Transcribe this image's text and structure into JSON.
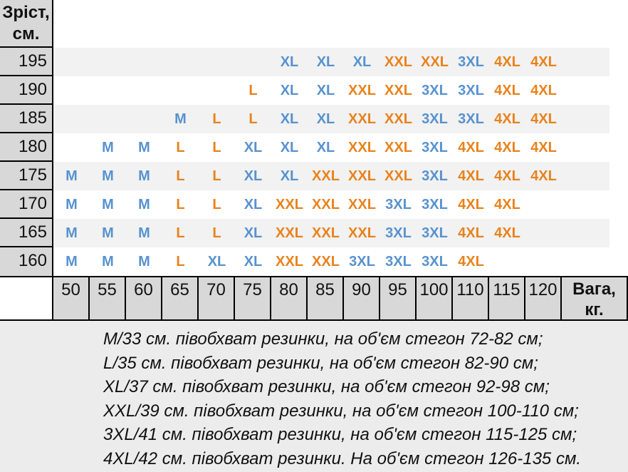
{
  "table": {
    "height_header": {
      "line1": "Зріст,",
      "line2": "см."
    },
    "weight_header": {
      "line1": "Вага,",
      "line2": "кг."
    },
    "weights": [
      "50",
      "55",
      "60",
      "65",
      "70",
      "75",
      "80",
      "85",
      "90",
      "95",
      "100",
      "110",
      "115",
      "120"
    ],
    "rows": [
      {
        "height": "195",
        "sizes": [
          "",
          "",
          "",
          "",
          "",
          "",
          "XL",
          "XL",
          "XL",
          "XXL",
          "XXL",
          "3XL",
          "4XL",
          "4XL"
        ]
      },
      {
        "height": "190",
        "sizes": [
          "",
          "",
          "",
          "",
          "",
          "L",
          "XL",
          "XL",
          "XXL",
          "XXL",
          "3XL",
          "3XL",
          "4XL",
          "4XL"
        ]
      },
      {
        "height": "185",
        "sizes": [
          "",
          "",
          "",
          "M",
          "L",
          "L",
          "XL",
          "XL",
          "XXL",
          "XXL",
          "3XL",
          "3XL",
          "4XL",
          "4XL"
        ]
      },
      {
        "height": "180",
        "sizes": [
          "",
          "M",
          "M",
          "L",
          "L",
          "XL",
          "XL",
          "XL",
          "XXL",
          "XXL",
          "3XL",
          "4XL",
          "4XL",
          "4XL"
        ]
      },
      {
        "height": "175",
        "sizes": [
          "M",
          "M",
          "M",
          "L",
          "L",
          "XL",
          "XL",
          "XXL",
          "XXL",
          "XXL",
          "3XL",
          "4XL",
          "4XL",
          "4XL"
        ]
      },
      {
        "height": "170",
        "sizes": [
          "M",
          "M",
          "M",
          "L",
          "L",
          "XL",
          "XXL",
          "XXL",
          "XXL",
          "3XL",
          "3XL",
          "4XL",
          "4XL",
          ""
        ]
      },
      {
        "height": "165",
        "sizes": [
          "M",
          "M",
          "M",
          "L",
          "L",
          "XL",
          "XXL",
          "XXL",
          "XXL",
          "3XL",
          "3XL",
          "4XL",
          "4XL",
          ""
        ]
      },
      {
        "height": "160",
        "sizes": [
          "M",
          "M",
          "M",
          "L",
          "XL",
          "XL",
          "XXL",
          "XXL",
          "3XL",
          "3XL",
          "3XL",
          "4XL",
          "",
          ""
        ]
      }
    ]
  },
  "size_color_map": {
    "M": "blue",
    "L": "orange",
    "XL": "blue",
    "XXL": "orange",
    "3XL": "blue",
    "4XL": "orange"
  },
  "colors": {
    "blue": "#5792cf",
    "orange": "#e8821c",
    "header_gray": "#d8d8d8",
    "row_alt": "#f2f2f2",
    "footer_bg": "#ececec",
    "border": "#000000"
  },
  "footer": {
    "lines": [
      "M/33 см. півобхват резинки, на об'єм стегон 72-82 см;",
      "L/35 см. півобхват резинки, на об'єм стегон 82-90 см;",
      "XL/37 см. півобхват резинки, на об'єм стегон 92-98 см;",
      "XXL/39 см. півобхват резинки, на об'єм стегон 100-110 см;",
      "3XL/41 см. півобхват резинки, на об'єм стегон 115-125 см;",
      "4XL/42 см. півобхват резинки. На об'єм стегон 126-135 см."
    ]
  }
}
